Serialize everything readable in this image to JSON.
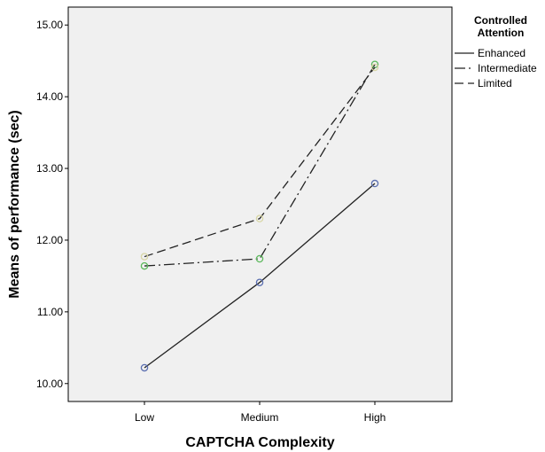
{
  "chart_data": {
    "type": "line",
    "categories": [
      "Low",
      "Medium",
      "High"
    ],
    "xlabel": "CAPTCHA Complexity",
    "ylabel": "Means of performance (sec)",
    "ylim": [
      9.75,
      15.25
    ],
    "yticks": [
      "10.00",
      "11.00",
      "12.00",
      "13.00",
      "14.00",
      "15.00"
    ],
    "ytick_values": [
      10,
      11,
      12,
      13,
      14,
      15
    ],
    "grid": false,
    "legend": {
      "title_line1": "Controlled",
      "title_line2": "Attention",
      "placement": "right"
    },
    "series": [
      {
        "name": "Enhanced",
        "values": [
          10.22,
          11.41,
          12.79
        ],
        "line_style": "solid",
        "marker_color": "#5b6fb0"
      },
      {
        "name": "Intermediate",
        "values": [
          11.64,
          11.74,
          14.45
        ],
        "line_style": "dashdot",
        "marker_color": "#5cb85c"
      },
      {
        "name": "Limited",
        "values": [
          11.77,
          12.3,
          14.41
        ],
        "line_style": "dashed",
        "marker_color": "#d8d6a6"
      }
    ],
    "colors": {
      "plot_background": "#f0f0f0",
      "line": "#222222"
    }
  }
}
